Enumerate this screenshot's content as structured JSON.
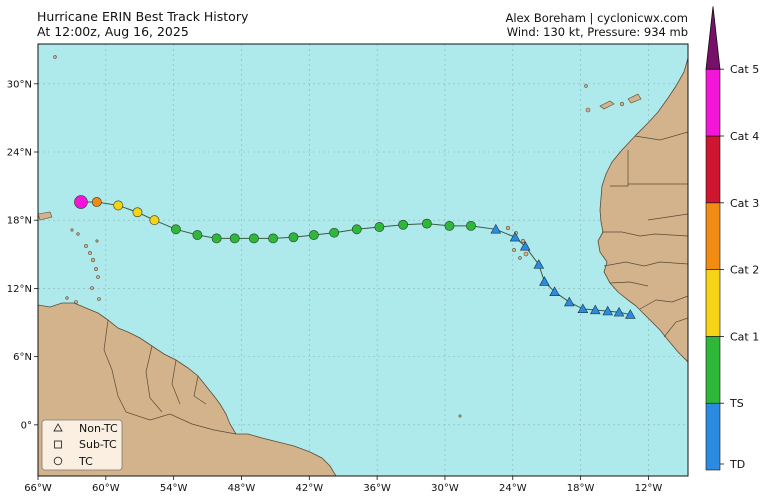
{
  "header": {
    "title": "Hurricane ERIN Best Track History",
    "time": "At 12:00z, Aug 16, 2025",
    "credit": "Alex Boreham | cyclonicwx.com",
    "intensity": "Wind: 130 kt, Pressure: 934 mb"
  },
  "map": {
    "lon_range": [
      -66,
      -8.5
    ],
    "lat_range": [
      -4.5,
      33.5
    ],
    "lon_ticks": [
      {
        "v": -66,
        "label": "66°W"
      },
      {
        "v": -60,
        "label": "60°W"
      },
      {
        "v": -54,
        "label": "54°W"
      },
      {
        "v": -48,
        "label": "48°W"
      },
      {
        "v": -42,
        "label": "42°W"
      },
      {
        "v": -36,
        "label": "36°W"
      },
      {
        "v": -30,
        "label": "30°W"
      },
      {
        "v": -24,
        "label": "24°W"
      },
      {
        "v": -18,
        "label": "18°W"
      },
      {
        "v": -12,
        "label": "12°W"
      }
    ],
    "lat_ticks": [
      {
        "v": 0,
        "label": "0°"
      },
      {
        "v": 6,
        "label": "6°N"
      },
      {
        "v": 12,
        "label": "12°N"
      },
      {
        "v": 18,
        "label": "18°N"
      },
      {
        "v": 24,
        "label": "24°N"
      },
      {
        "v": 30,
        "label": "30°N"
      }
    ],
    "colors": {
      "ocean": "#aeeaeb",
      "land": "#d2b38b",
      "border": "#5b4a36",
      "grid": "#8fb3b5",
      "track": "#3a5a40"
    }
  },
  "legend": {
    "items": [
      {
        "shape": "triangle",
        "label": "Non-TC"
      },
      {
        "shape": "square",
        "label": "Sub-TC"
      },
      {
        "shape": "circle",
        "label": "TC"
      }
    ]
  },
  "colorbar": {
    "levels": [
      {
        "label": "TD",
        "color": "#2a8be0"
      },
      {
        "label": "TS",
        "color": "#2eb83a"
      },
      {
        "label": "Cat 1",
        "color": "#f5d316"
      },
      {
        "label": "Cat 2",
        "color": "#f28b12"
      },
      {
        "label": "Cat 3",
        "color": "#d01530"
      },
      {
        "label": "Cat 4",
        "color": "#f515d8"
      },
      {
        "label": "Cat 5",
        "color": "#780f69"
      }
    ]
  },
  "track": [
    {
      "lon": -13.6,
      "lat": 9.7,
      "shape": "triangle",
      "cat": "TD"
    },
    {
      "lon": -14.6,
      "lat": 9.9,
      "shape": "triangle",
      "cat": "TD"
    },
    {
      "lon": -15.6,
      "lat": 10.0,
      "shape": "triangle",
      "cat": "TD"
    },
    {
      "lon": -16.7,
      "lat": 10.1,
      "shape": "triangle",
      "cat": "TD"
    },
    {
      "lon": -17.8,
      "lat": 10.2,
      "shape": "triangle",
      "cat": "TD"
    },
    {
      "lon": -19.0,
      "lat": 10.8,
      "shape": "triangle",
      "cat": "TD"
    },
    {
      "lon": -20.3,
      "lat": 11.7,
      "shape": "triangle",
      "cat": "TD"
    },
    {
      "lon": -21.2,
      "lat": 12.6,
      "shape": "triangle",
      "cat": "TD"
    },
    {
      "lon": -21.7,
      "lat": 14.1,
      "shape": "triangle",
      "cat": "TD"
    },
    {
      "lon": -22.9,
      "lat": 15.7,
      "shape": "triangle",
      "cat": "TD"
    },
    {
      "lon": -23.8,
      "lat": 16.5,
      "shape": "triangle",
      "cat": "TD"
    },
    {
      "lon": -25.5,
      "lat": 17.2,
      "shape": "triangle",
      "cat": "TD"
    },
    {
      "lon": -27.7,
      "lat": 17.5,
      "shape": "circle",
      "cat": "TS"
    },
    {
      "lon": -29.6,
      "lat": 17.5,
      "shape": "circle",
      "cat": "TS"
    },
    {
      "lon": -31.6,
      "lat": 17.7,
      "shape": "circle",
      "cat": "TS"
    },
    {
      "lon": -33.7,
      "lat": 17.6,
      "shape": "circle",
      "cat": "TS"
    },
    {
      "lon": -35.8,
      "lat": 17.4,
      "shape": "circle",
      "cat": "TS"
    },
    {
      "lon": -37.8,
      "lat": 17.2,
      "shape": "circle",
      "cat": "TS"
    },
    {
      "lon": -39.8,
      "lat": 16.9,
      "shape": "circle",
      "cat": "TS"
    },
    {
      "lon": -41.6,
      "lat": 16.7,
      "shape": "circle",
      "cat": "TS"
    },
    {
      "lon": -43.4,
      "lat": 16.5,
      "shape": "circle",
      "cat": "TS"
    },
    {
      "lon": -45.2,
      "lat": 16.4,
      "shape": "circle",
      "cat": "TS"
    },
    {
      "lon": -46.9,
      "lat": 16.4,
      "shape": "circle",
      "cat": "TS"
    },
    {
      "lon": -48.6,
      "lat": 16.4,
      "shape": "circle",
      "cat": "TS"
    },
    {
      "lon": -50.2,
      "lat": 16.4,
      "shape": "circle",
      "cat": "TS"
    },
    {
      "lon": -51.9,
      "lat": 16.7,
      "shape": "circle",
      "cat": "TS"
    },
    {
      "lon": -53.8,
      "lat": 17.2,
      "shape": "circle",
      "cat": "TS"
    },
    {
      "lon": -55.7,
      "lat": 18.0,
      "shape": "circle",
      "cat": "Cat 1"
    },
    {
      "lon": -57.2,
      "lat": 18.7,
      "shape": "circle",
      "cat": "Cat 1"
    },
    {
      "lon": -58.9,
      "lat": 19.3,
      "shape": "circle",
      "cat": "Cat 1"
    },
    {
      "lon": -60.8,
      "lat": 19.6,
      "shape": "circle",
      "cat": "Cat 2"
    },
    {
      "lon": -62.2,
      "lat": 19.6,
      "shape": "circle",
      "cat": "Cat 4",
      "current": true
    }
  ]
}
